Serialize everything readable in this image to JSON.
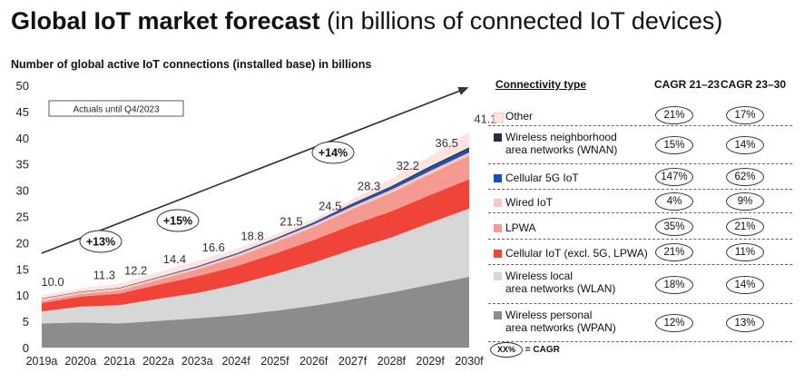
{
  "header": {
    "title_bold": "Global IoT market forecast",
    "title_rest": "(in billions of connected IoT devices)",
    "subtitle": "Number of global active IoT connections (installed base) in billions"
  },
  "chart_data": {
    "type": "area",
    "stacked": true,
    "title": "Number of global active IoT connections (installed base) in billions",
    "categories": [
      "2019a",
      "2020a",
      "2021a",
      "2022a",
      "2023a",
      "2024f",
      "2025f",
      "2026f",
      "2027f",
      "2028f",
      "2029f",
      "2030f"
    ],
    "ylim": [
      0,
      50
    ],
    "yticks": [
      0,
      5,
      10,
      15,
      20,
      25,
      30,
      35,
      40,
      45,
      50
    ],
    "grid": false,
    "series": [
      {
        "name": "Wireless personal area networks (WPAN)",
        "color": "#8c8c8c",
        "values": [
          4.6,
          4.8,
          4.6,
          5.1,
          5.6,
          6.2,
          7.0,
          8.0,
          9.2,
          10.5,
          12.0,
          13.5
        ]
      },
      {
        "name": "Wireless local area networks (WLAN)",
        "color": "#d7d7d7",
        "values": [
          2.3,
          3.0,
          3.5,
          4.2,
          4.8,
          5.8,
          7.0,
          8.2,
          9.5,
          10.5,
          11.8,
          13.0
        ]
      },
      {
        "name": "Cellular IoT (excl. 5G, LPWA)",
        "color": "#f04438",
        "values": [
          1.6,
          1.9,
          2.2,
          2.7,
          3.2,
          3.5,
          3.9,
          4.3,
          4.7,
          5.0,
          5.3,
          5.6
        ]
      },
      {
        "name": "LPWA",
        "color": "#f59a90",
        "values": [
          0.4,
          0.5,
          0.6,
          0.9,
          1.3,
          1.7,
          2.1,
          2.5,
          3.0,
          3.5,
          4.0,
          4.5
        ]
      },
      {
        "name": "Wired IoT",
        "color": "#f9c8c2",
        "values": [
          0.4,
          0.4,
          0.4,
          0.4,
          0.4,
          0.5,
          0.5,
          0.5,
          0.5,
          0.6,
          0.6,
          0.6
        ]
      },
      {
        "name": "Cellular 5G IoT",
        "color": "#1f4fb5",
        "values": [
          0.0,
          0.0,
          0.0,
          0.05,
          0.1,
          0.15,
          0.2,
          0.3,
          0.4,
          0.5,
          0.6,
          0.7
        ]
      },
      {
        "name": "Wireless neighborhood area networks (WNAN)",
        "color": "#24303f",
        "values": [
          0.1,
          0.1,
          0.1,
          0.1,
          0.1,
          0.1,
          0.1,
          0.1,
          0.2,
          0.2,
          0.3,
          0.3
        ]
      },
      {
        "name": "Other",
        "color": "#fde4e0",
        "values": [
          0.6,
          0.6,
          0.8,
          0.95,
          1.0,
          0.85,
          0.7,
          0.6,
          0.8,
          1.4,
          1.9,
          2.9
        ]
      }
    ],
    "totals": [
      10.0,
      11.3,
      12.2,
      14.4,
      16.6,
      18.8,
      21.5,
      24.5,
      28.3,
      32.2,
      36.5,
      41.1
    ],
    "total_labels": [
      "10.0",
      "11.3",
      "12.2",
      "14.4",
      "16.6",
      "18.8",
      "21.5",
      "24.5",
      "28.3",
      "32.2",
      "36.5",
      "41.1"
    ],
    "trend_line": {
      "from_value": 18,
      "to_value": 49.5
    },
    "annotations": [
      "Actuals until Q4/2023",
      "+13%",
      "+15%",
      "+14%"
    ]
  },
  "legend_table": {
    "headers": {
      "type": "Connectivity type",
      "cagr1": "CAGR 21–23",
      "cagr2": "CAGR 23–30"
    },
    "rows": [
      {
        "line1": "Other",
        "line2": "",
        "color": "#fde4e0",
        "cagr1": "21%",
        "cagr2": "17%"
      },
      {
        "line1": "Wireless neighborhood",
        "line2": "area networks (WNAN)",
        "color": "#24303f",
        "cagr1": "15%",
        "cagr2": "14%"
      },
      {
        "line1": "Cellular 5G IoT",
        "line2": "",
        "color": "#1f4fb5",
        "cagr1": "147%",
        "cagr2": "62%"
      },
      {
        "line1": "Wired IoT",
        "line2": "",
        "color": "#f9c8c2",
        "cagr1": "4%",
        "cagr2": "9%"
      },
      {
        "line1": "LPWA",
        "line2": "",
        "color": "#f59a90",
        "cagr1": "35%",
        "cagr2": "21%"
      },
      {
        "line1": "Cellular IoT (excl. 5G, LPWA)",
        "line2": "",
        "color": "#f04438",
        "cagr1": "21%",
        "cagr2": "11%"
      },
      {
        "line1": "Wireless local",
        "line2": "area networks (WLAN)",
        "color": "#d7d7d7",
        "cagr1": "18%",
        "cagr2": "14%"
      },
      {
        "line1": "Wireless personal",
        "line2": "area networks (WPAN)",
        "color": "#8c8c8c",
        "cagr1": "12%",
        "cagr2": "13%"
      }
    ],
    "key_symbol": "XX%",
    "key_text": "= CAGR"
  }
}
